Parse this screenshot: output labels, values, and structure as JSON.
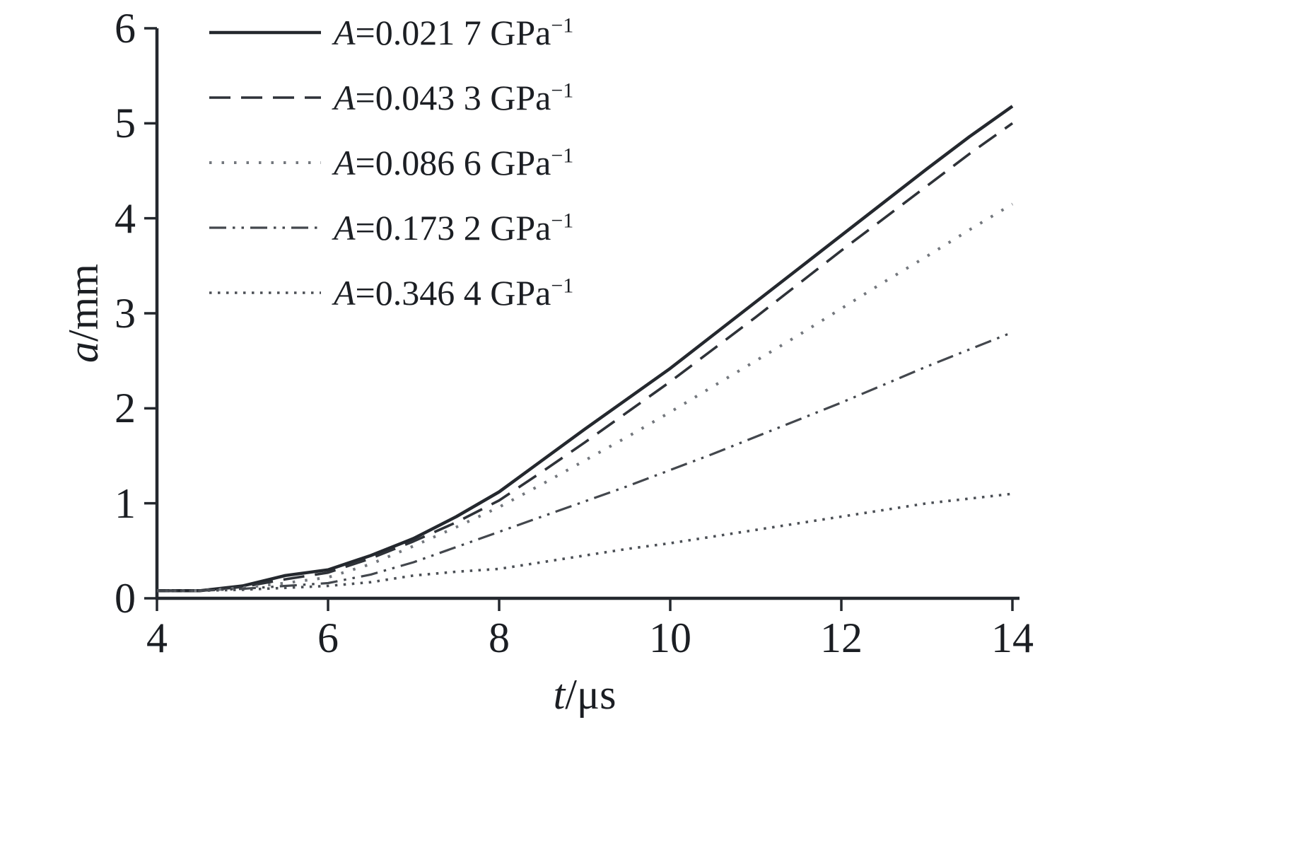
{
  "page": {
    "background": "#ffffff",
    "axis_color": "#24282e",
    "text_color": "#1b1e23"
  },
  "chart_data": {
    "type": "line",
    "title": "",
    "xlabel": "t/μs",
    "ylabel": "a/mm",
    "xlabel_var": "t",
    "xlabel_rest": "/μs",
    "ylabel_var": "a",
    "ylabel_rest": "/mm",
    "xlim": [
      4,
      14
    ],
    "ylim": [
      0,
      6
    ],
    "xticks": [
      4,
      6,
      8,
      10,
      12,
      14
    ],
    "yticks": [
      0,
      1,
      2,
      3,
      4,
      5,
      6
    ],
    "grid": false,
    "legend_position": "upper-left",
    "x": [
      4,
      4.5,
      5,
      5.5,
      6,
      6.5,
      7,
      7.5,
      8,
      8.5,
      9,
      9.5,
      10,
      10.5,
      11,
      11.5,
      12,
      12.5,
      13,
      13.5,
      14
    ],
    "series": [
      {
        "label": "A=0.021 7 GPa⁻¹",
        "label_var": "A",
        "label_main": "=0.021 7 GPa",
        "label_sup": "−1",
        "style": "solid",
        "color": "#24282e",
        "values": [
          0.08,
          0.08,
          0.13,
          0.24,
          0.3,
          0.45,
          0.63,
          0.86,
          1.12,
          1.45,
          1.78,
          2.1,
          2.42,
          2.77,
          3.12,
          3.47,
          3.82,
          4.17,
          4.52,
          4.86,
          5.18
        ]
      },
      {
        "label": "A=0.043 3 GPa⁻¹",
        "label_var": "A",
        "label_main": "=0.043 3 GPa",
        "label_sup": "−1",
        "style": "dashed",
        "color": "#2e3238",
        "values": [
          0.08,
          0.08,
          0.12,
          0.2,
          0.27,
          0.42,
          0.6,
          0.8,
          1.03,
          1.33,
          1.64,
          1.96,
          2.28,
          2.62,
          2.96,
          3.31,
          3.66,
          4.0,
          4.34,
          4.68,
          5.0
        ]
      },
      {
        "label": "A=0.086 6 GPa⁻¹",
        "label_var": "A",
        "label_main": "=0.086 6 GPa",
        "label_sup": "−1",
        "style": "dotted",
        "color": "#73777d",
        "values": [
          0.08,
          0.08,
          0.11,
          0.16,
          0.22,
          0.36,
          0.55,
          0.75,
          0.96,
          1.2,
          1.45,
          1.7,
          1.96,
          2.23,
          2.5,
          2.77,
          3.05,
          3.33,
          3.6,
          3.88,
          4.15
        ]
      },
      {
        "label": "A=0.173 2 GPa⁻¹",
        "label_var": "A",
        "label_main": "=0.173 2 GPa",
        "label_sup": "−1",
        "style": "dash-dot-dot",
        "color": "#43474d",
        "values": [
          0.08,
          0.08,
          0.1,
          0.13,
          0.16,
          0.25,
          0.38,
          0.54,
          0.7,
          0.86,
          1.02,
          1.18,
          1.35,
          1.52,
          1.7,
          1.88,
          2.06,
          2.25,
          2.44,
          2.62,
          2.8
        ]
      },
      {
        "label": "A=0.346 4 GPa⁻¹",
        "label_var": "A",
        "label_main": "=0.346 4 GPa",
        "label_sup": "−1",
        "style": "dense-dotted",
        "color": "#4b4f55",
        "values": [
          0.08,
          0.08,
          0.09,
          0.11,
          0.13,
          0.17,
          0.24,
          0.28,
          0.31,
          0.38,
          0.45,
          0.52,
          0.58,
          0.65,
          0.72,
          0.79,
          0.86,
          0.93,
          1.0,
          1.05,
          1.1
        ]
      }
    ]
  }
}
